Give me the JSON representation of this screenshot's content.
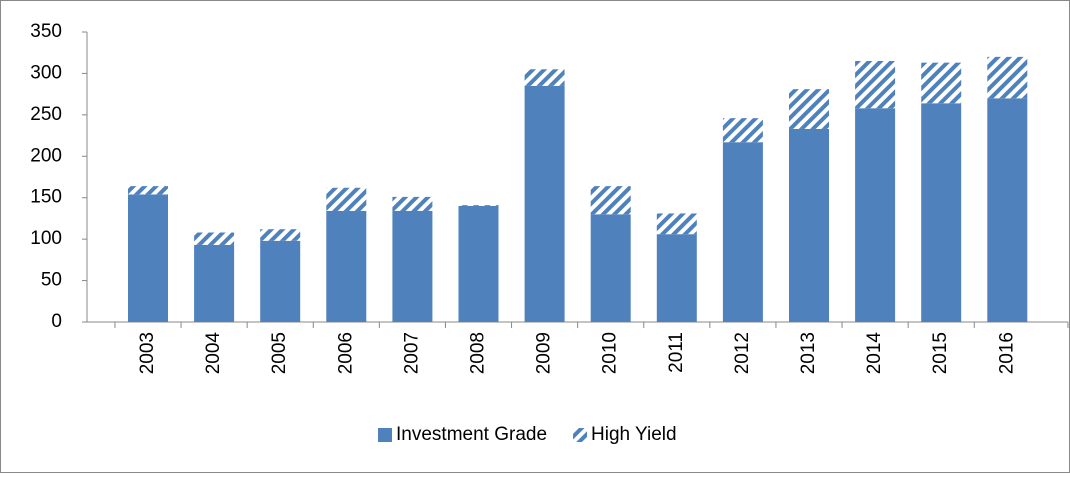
{
  "chart_data": {
    "type": "stacked_bar",
    "categories": [
      "2003",
      "2004",
      "2005",
      "2006",
      "2007",
      "2008",
      "2009",
      "2010",
      "2011",
      "2012",
      "2013",
      "2014",
      "2015",
      "2016"
    ],
    "series": [
      {
        "name": "Investment Grade",
        "color": "#4f81bd",
        "values": [
          154,
          93,
          98,
          134,
          134,
          140,
          285,
          130,
          106,
          217,
          233,
          258,
          264,
          270
        ]
      },
      {
        "name": "High Yield",
        "color": "#4f81bd",
        "values": [
          10,
          15,
          14,
          28,
          17,
          1,
          20,
          34,
          25,
          29,
          48,
          57,
          49,
          50
        ]
      }
    ],
    "ylim": [
      0,
      350
    ],
    "yticks": [
      0,
      50,
      100,
      150,
      200,
      250,
      300,
      350
    ],
    "grid": false,
    "legend": "bottom"
  }
}
